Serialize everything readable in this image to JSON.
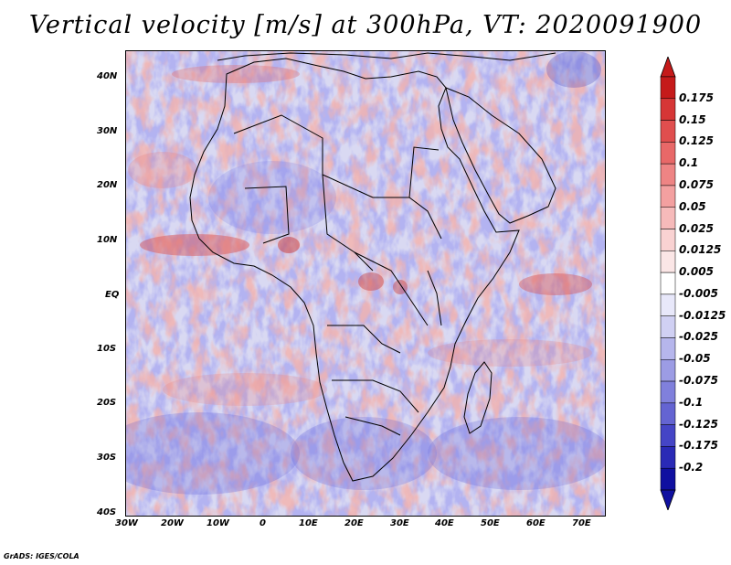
{
  "title": "Vertical velocity [m/s] at 300hPa, VT: 2020091900",
  "map": {
    "lat_labels": [
      "40N",
      "30N",
      "20N",
      "10N",
      "EQ",
      "10S",
      "20S",
      "30S",
      "40S"
    ],
    "lon_labels": [
      "30W",
      "20W",
      "10W",
      "0",
      "10E",
      "20E",
      "30E",
      "40E",
      "50E",
      "60E",
      "70E"
    ],
    "region": "Africa",
    "colors": {
      "positive": "#e8736c",
      "negative": "#6b6be0",
      "land_border": "#000000"
    }
  },
  "colorbar": {
    "labels": [
      "0.175",
      "0.15",
      "0.125",
      "0.1",
      "0.075",
      "0.05",
      "0.025",
      "0.0125",
      "0.005",
      "-0.005",
      "-0.0125",
      "-0.025",
      "-0.05",
      "-0.075",
      "-0.1",
      "-0.125",
      "-0.175",
      "-0.2"
    ],
    "colors": [
      "#c51a1a",
      "#d63636",
      "#e04e4e",
      "#e86868",
      "#ee8484",
      "#f3a0a0",
      "#f6baba",
      "#f9d2d2",
      "#fbe6e6",
      "#ffffff",
      "#e8e8fa",
      "#d0d0f3",
      "#b6b6ec",
      "#9c9ce4",
      "#8080dc",
      "#6464d2",
      "#4545c6",
      "#2a2ab6",
      "#1010a0"
    ]
  },
  "credit": "GrADS: IGES/COLA"
}
